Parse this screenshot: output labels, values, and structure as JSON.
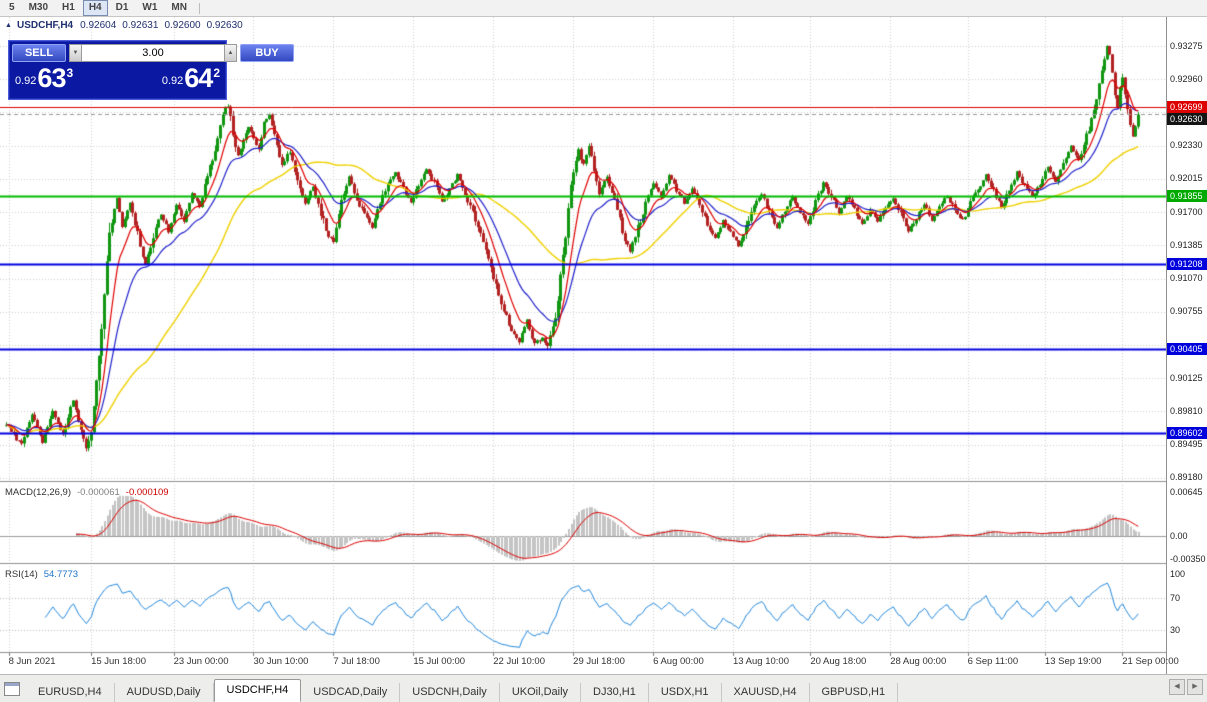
{
  "toolbar": {
    "periods": [
      {
        "label": "5",
        "active": false
      },
      {
        "label": "M30",
        "active": false
      },
      {
        "label": "H1",
        "active": false
      },
      {
        "label": "H4",
        "active": true
      },
      {
        "label": "D1",
        "active": false
      },
      {
        "label": "W1",
        "active": false
      },
      {
        "label": "MN",
        "active": false
      }
    ]
  },
  "chart": {
    "collapse_arrow": "▲",
    "symbol_title": "USDCHF,H4",
    "ohlc": {
      "open": "0.92604",
      "high": "0.92631",
      "low": "0.92600",
      "close": "0.92630"
    },
    "one_click": {
      "sell_label": "SELL",
      "buy_label": "BUY",
      "volume": "3.00",
      "spin_down": "▼",
      "spin_up": "▲",
      "sell_price": {
        "prefix": "0.92",
        "big": "63",
        "sup": "3",
        "full": "0.92633"
      },
      "buy_price": {
        "prefix": "0.92",
        "big": "64",
        "sup": "2",
        "full": "0.92642"
      }
    },
    "price_axis": {
      "ticks": [
        "0.93275",
        "0.92960",
        "0.92330",
        "0.92015",
        "0.91700",
        "0.91385",
        "0.91070",
        "0.90755",
        "0.90125",
        "0.89810",
        "0.89495",
        "0.89180"
      ],
      "badges": [
        {
          "text": "0.92699",
          "bg": "#DD0000",
          "price": 0.92699
        },
        {
          "text": "0.92630",
          "bg": "#141414",
          "price": 0.9263
        },
        {
          "text": "0.91855",
          "bg": "#00AA00",
          "price": 0.91855
        },
        {
          "text": "0.91208",
          "bg": "#0000DD",
          "price": 0.91208
        },
        {
          "text": "0.90405",
          "bg": "#0000DD",
          "price": 0.90405
        },
        {
          "text": "0.89602",
          "bg": "#0000DD",
          "price": 0.89602
        }
      ]
    },
    "time_axis": [
      {
        "text": "8 Jun 2021",
        "bar": 1
      },
      {
        "text": "15 Jun 18:00",
        "bar": 33
      },
      {
        "text": "23 Jun 00:00",
        "bar": 65
      },
      {
        "text": "30 Jun 10:00",
        "bar": 96
      },
      {
        "text": "7 Jul 18:00",
        "bar": 127
      },
      {
        "text": "15 Jul 00:00",
        "bar": 158
      },
      {
        "text": "22 Jul 10:00",
        "bar": 189
      },
      {
        "text": "29 Jul 18:00",
        "bar": 220
      },
      {
        "text": "6 Aug 00:00",
        "bar": 251
      },
      {
        "text": "13 Aug 10:00",
        "bar": 282
      },
      {
        "text": "20 Aug 18:00",
        "bar": 312
      },
      {
        "text": "28 Aug 00:00",
        "bar": 343
      },
      {
        "text": "6 Sep 11:00",
        "bar": 373
      },
      {
        "text": "13 Sep 19:00",
        "bar": 403
      },
      {
        "text": "21 Sep 00:00",
        "bar": 433
      }
    ]
  },
  "indicators": {
    "macd": {
      "name": "MACD(12,26,9)",
      "value_main": "-0.000061",
      "value_signal": "-0.000109",
      "axis_labels": [
        "0.00645",
        "0.00",
        "-0.00350"
      ]
    },
    "rsi": {
      "name": "RSI(14)",
      "value": "54.7773",
      "axis_labels": [
        "100",
        "70",
        "30"
      ],
      "levels": [
        70,
        30
      ]
    }
  },
  "tabs": {
    "items": [
      {
        "label": "EURUSD,H4",
        "active": false
      },
      {
        "label": "AUDUSD,Daily",
        "active": false
      },
      {
        "label": "USDCHF,H4",
        "active": true
      },
      {
        "label": "USDCAD,Daily",
        "active": false
      },
      {
        "label": "USDCNH,Daily",
        "active": false
      },
      {
        "label": "UKOil,Daily",
        "active": false
      },
      {
        "label": "DJ30,H1",
        "active": false
      },
      {
        "label": "USDX,H1",
        "active": false
      },
      {
        "label": "XAUUSD,H4",
        "active": false
      },
      {
        "label": "GBPUSD,H1",
        "active": false
      }
    ],
    "scroll_left": "◀",
    "scroll_right": "▶"
  },
  "chart_data": {
    "type": "candlestick",
    "symbol": "USDCHF",
    "timeframe": "H4",
    "title": "USDCHF,H4",
    "y_range": [
      0.89151,
      0.9355
    ],
    "grid_price_top": 0.93275,
    "grid_price_step": 0.00315,
    "bars_total": 440,
    "bid_price": 0.9263,
    "horizontal_lines": [
      {
        "price": 0.92699,
        "color": "#DD0000",
        "width": 1
      },
      {
        "price": 0.91855,
        "color": "#00BB00",
        "width": 2
      },
      {
        "price": 0.91208,
        "color": "#0000E0",
        "width": 2
      },
      {
        "price": 0.90405,
        "color": "#0000E0",
        "width": 2
      },
      {
        "price": 0.89602,
        "color": "#0000E0",
        "width": 2
      }
    ],
    "colors": {
      "bull": "#119611",
      "bear": "#B22222",
      "ma_fast": "#E00000",
      "ma_mid": "#2222CC",
      "ma_slow": "#EFD200",
      "macd_hist": "#C4C4C4",
      "macd_signal": "#DD0000",
      "rsi_line": "#2288DD"
    },
    "ma_estimated_periods": {
      "fast_ema": 9,
      "mid_ema": 21,
      "slow_sma": 55
    },
    "close_anchors": [
      [
        0,
        0.8968
      ],
      [
        6,
        0.8949
      ],
      [
        10,
        0.8978
      ],
      [
        14,
        0.8952
      ],
      [
        18,
        0.898
      ],
      [
        22,
        0.8958
      ],
      [
        26,
        0.8992
      ],
      [
        29,
        0.8962
      ],
      [
        31,
        0.8946
      ],
      [
        33,
        0.8966
      ],
      [
        35,
        0.901
      ],
      [
        37,
        0.9066
      ],
      [
        39,
        0.9125
      ],
      [
        41,
        0.9162
      ],
      [
        43,
        0.9185
      ],
      [
        45,
        0.9155
      ],
      [
        48,
        0.918
      ],
      [
        50,
        0.9158
      ],
      [
        52,
        0.9138
      ],
      [
        54,
        0.912
      ],
      [
        57,
        0.9148
      ],
      [
        60,
        0.9168
      ],
      [
        63,
        0.9152
      ],
      [
        66,
        0.9178
      ],
      [
        69,
        0.9162
      ],
      [
        72,
        0.9188
      ],
      [
        75,
        0.9175
      ],
      [
        78,
        0.9205
      ],
      [
        81,
        0.9232
      ],
      [
        84,
        0.9265
      ],
      [
        86,
        0.9272
      ],
      [
        88,
        0.9245
      ],
      [
        90,
        0.9222
      ],
      [
        92,
        0.9238
      ],
      [
        94,
        0.9252
      ],
      [
        96,
        0.924
      ],
      [
        98,
        0.9228
      ],
      [
        100,
        0.9254
      ],
      [
        102,
        0.9262
      ],
      [
        104,
        0.9242
      ],
      [
        107,
        0.9215
      ],
      [
        110,
        0.9228
      ],
      [
        113,
        0.92
      ],
      [
        116,
        0.9178
      ],
      [
        119,
        0.9195
      ],
      [
        122,
        0.9168
      ],
      [
        125,
        0.9148
      ],
      [
        127,
        0.9142
      ],
      [
        129,
        0.9168
      ],
      [
        131,
        0.9188
      ],
      [
        133,
        0.9205
      ],
      [
        136,
        0.9182
      ],
      [
        139,
        0.9168
      ],
      [
        142,
        0.9155
      ],
      [
        145,
        0.9178
      ],
      [
        148,
        0.9195
      ],
      [
        151,
        0.9208
      ],
      [
        154,
        0.9192
      ],
      [
        157,
        0.918
      ],
      [
        160,
        0.9196
      ],
      [
        163,
        0.921
      ],
      [
        166,
        0.9198
      ],
      [
        169,
        0.918
      ],
      [
        172,
        0.9192
      ],
      [
        175,
        0.9205
      ],
      [
        178,
        0.9188
      ],
      [
        181,
        0.917
      ],
      [
        184,
        0.915
      ],
      [
        187,
        0.9128
      ],
      [
        190,
        0.91
      ],
      [
        193,
        0.9078
      ],
      [
        196,
        0.9058
      ],
      [
        199,
        0.9048
      ],
      [
        202,
        0.9068
      ],
      [
        205,
        0.9044
      ],
      [
        208,
        0.9052
      ],
      [
        210,
        0.9042
      ],
      [
        212,
        0.906
      ],
      [
        214,
        0.909
      ],
      [
        216,
        0.913
      ],
      [
        218,
        0.9175
      ],
      [
        220,
        0.9205
      ],
      [
        222,
        0.9228
      ],
      [
        224,
        0.9215
      ],
      [
        226,
        0.9232
      ],
      [
        228,
        0.921
      ],
      [
        230,
        0.9188
      ],
      [
        233,
        0.9205
      ],
      [
        236,
        0.918
      ],
      [
        239,
        0.9152
      ],
      [
        242,
        0.9132
      ],
      [
        245,
        0.9155
      ],
      [
        248,
        0.9178
      ],
      [
        251,
        0.9198
      ],
      [
        254,
        0.9185
      ],
      [
        257,
        0.9205
      ],
      [
        260,
        0.9192
      ],
      [
        263,
        0.9178
      ],
      [
        266,
        0.9192
      ],
      [
        269,
        0.9175
      ],
      [
        272,
        0.9158
      ],
      [
        275,
        0.9145
      ],
      [
        278,
        0.9162
      ],
      [
        281,
        0.915
      ],
      [
        284,
        0.9138
      ],
      [
        287,
        0.9158
      ],
      [
        290,
        0.9175
      ],
      [
        293,
        0.9188
      ],
      [
        296,
        0.917
      ],
      [
        299,
        0.9155
      ],
      [
        302,
        0.9172
      ],
      [
        305,
        0.9185
      ],
      [
        308,
        0.917
      ],
      [
        311,
        0.9158
      ],
      [
        314,
        0.918
      ],
      [
        317,
        0.9198
      ],
      [
        320,
        0.9185
      ],
      [
        323,
        0.917
      ],
      [
        326,
        0.9185
      ],
      [
        329,
        0.9172
      ],
      [
        332,
        0.9158
      ],
      [
        335,
        0.9172
      ],
      [
        338,
        0.9162
      ],
      [
        341,
        0.9175
      ],
      [
        344,
        0.9182
      ],
      [
        347,
        0.9168
      ],
      [
        350,
        0.9152
      ],
      [
        353,
        0.9165
      ],
      [
        356,
        0.9178
      ],
      [
        359,
        0.9162
      ],
      [
        362,
        0.9175
      ],
      [
        365,
        0.9185
      ],
      [
        368,
        0.9172
      ],
      [
        371,
        0.9162
      ],
      [
        374,
        0.9178
      ],
      [
        377,
        0.9192
      ],
      [
        380,
        0.9205
      ],
      [
        383,
        0.919
      ],
      [
        386,
        0.9175
      ],
      [
        389,
        0.919
      ],
      [
        392,
        0.9208
      ],
      [
        395,
        0.9195
      ],
      [
        398,
        0.9185
      ],
      [
        401,
        0.9198
      ],
      [
        404,
        0.9212
      ],
      [
        407,
        0.9198
      ],
      [
        410,
        0.9215
      ],
      [
        413,
        0.9232
      ],
      [
        416,
        0.922
      ],
      [
        419,
        0.9242
      ],
      [
        422,
        0.9268
      ],
      [
        424,
        0.9292
      ],
      [
        426,
        0.9315
      ],
      [
        427,
        0.9326
      ],
      [
        428,
        0.9318
      ],
      [
        429,
        0.93
      ],
      [
        430,
        0.9282
      ],
      [
        431,
        0.927
      ],
      [
        432,
        0.9288
      ],
      [
        433,
        0.9296
      ],
      [
        434,
        0.928
      ],
      [
        435,
        0.9268
      ],
      [
        436,
        0.9252
      ],
      [
        437,
        0.924
      ],
      [
        438,
        0.9252
      ],
      [
        439,
        0.9263
      ]
    ]
  }
}
